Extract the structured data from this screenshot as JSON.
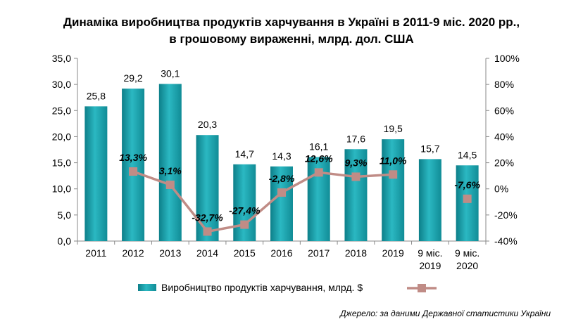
{
  "chart_data": {
    "type": "bar",
    "title_line1": "Динаміка виробництва продуктів харчування в Україні в 2011-9 міс. 2020 рр.,",
    "title_line2": "в грошовому вираженні, млрд. дол. США",
    "categories": [
      [
        "2011"
      ],
      [
        "2012"
      ],
      [
        "2013"
      ],
      [
        "2014"
      ],
      [
        "2015"
      ],
      [
        "2016"
      ],
      [
        "2017"
      ],
      [
        "2018"
      ],
      [
        "2019"
      ],
      [
        "9 міс.",
        "2019"
      ],
      [
        "9 міс.",
        "2020"
      ]
    ],
    "series": [
      {
        "name": "Виробництво продуктів харчування, млрд. $",
        "type": "bar",
        "axis": "left",
        "values": [
          25.8,
          29.2,
          30.1,
          20.3,
          14.7,
          14.3,
          16.1,
          17.6,
          19.5,
          15.7,
          14.5
        ],
        "labels": [
          "25,8",
          "29,2",
          "30,1",
          "20,3",
          "14,7",
          "14,3",
          "16,1",
          "17,6",
          "19,5",
          "15,7",
          "14,5"
        ],
        "color": "#1aa3ad"
      },
      {
        "name": "",
        "type": "line",
        "axis": "right",
        "values": [
          null,
          13.3,
          3.1,
          -32.7,
          -27.4,
          -2.8,
          12.6,
          9.3,
          11.0,
          null,
          -7.6
        ],
        "labels": [
          null,
          "13,3%",
          "3,1%",
          "-32,7%",
          "-27,4%",
          "-2,8%",
          "12,6%",
          "9,3%",
          "11,0%",
          null,
          "-7,6%"
        ],
        "color": "#c08c86"
      }
    ],
    "y_left": {
      "lim": [
        0,
        35
      ],
      "ticks": [
        0,
        5,
        10,
        15,
        20,
        25,
        30,
        35
      ],
      "tick_labels": [
        "0,0",
        "5,0",
        "10,0",
        "15,0",
        "20,0",
        "25,0",
        "30,0",
        "35,0"
      ]
    },
    "y_right": {
      "lim": [
        -40,
        100
      ],
      "ticks": [
        -40,
        -20,
        0,
        20,
        40,
        60,
        80,
        100
      ],
      "tick_labels": [
        "-40%",
        "-20%",
        "0%",
        "20%",
        "40%",
        "60%",
        "80%",
        "100%"
      ]
    },
    "grid": false,
    "legend_position": "bottom",
    "source": "Джерело: за даними Державної статистики України"
  }
}
